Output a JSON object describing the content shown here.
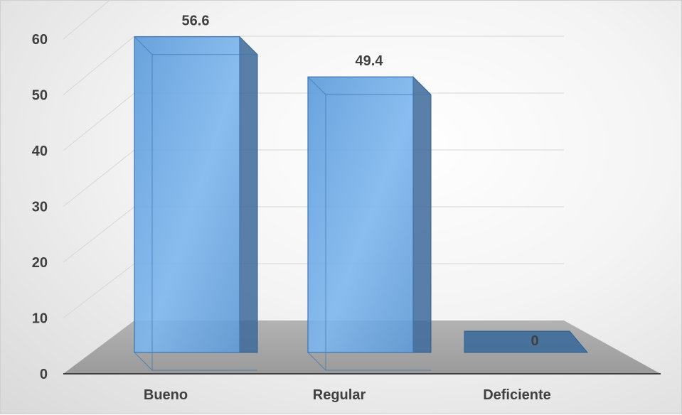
{
  "chart_data": {
    "type": "bar",
    "style": "3d-column",
    "categories": [
      "Bueno",
      "Regular",
      "Deficiente"
    ],
    "values": [
      56.6,
      49.4,
      0
    ],
    "data_labels": [
      "56.6",
      "49.4",
      "0"
    ],
    "title": "",
    "xlabel": "",
    "ylabel": "",
    "ylim": [
      0,
      60
    ],
    "yticks": [
      0,
      10,
      20,
      30,
      40,
      50,
      60
    ],
    "ytick_labels": [
      "0",
      "10",
      "20",
      "30",
      "40",
      "50",
      "60"
    ],
    "grid": true,
    "legend": "none",
    "colors": {
      "bar_front": "#6fa8dc",
      "bar_side": "#3d6a9a",
      "bar_top": "#5b8fc7",
      "floor": "#a6a6a6",
      "axis": "#404040",
      "text": "#404040"
    }
  }
}
